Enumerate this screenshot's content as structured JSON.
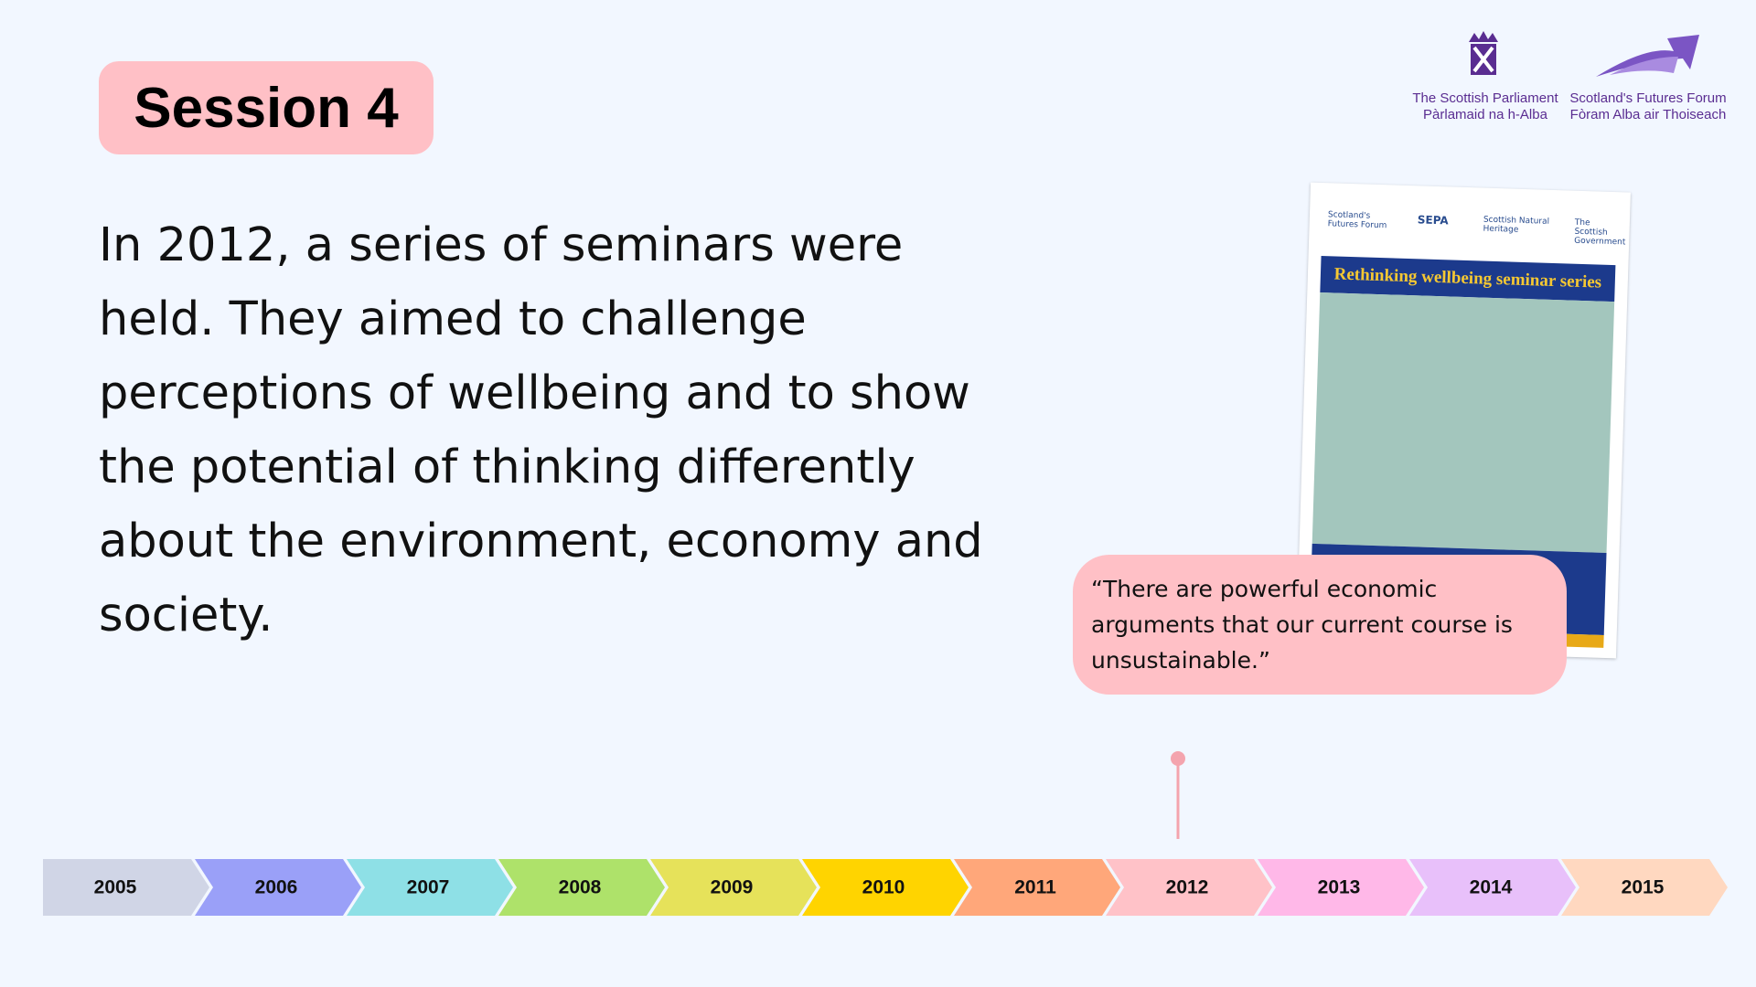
{
  "session": "Session 4",
  "body": "In 2012, a series of seminars were held. They aimed to challenge perceptions of wellbeing and to show the potential of thinking differently about the environment, economy and society.",
  "quote": "“There are powerful economic arguments that our current course is unsustainable.”",
  "logos": {
    "parliament": [
      "The Scottish Parliament",
      "Pàrlamaid na h-Alba"
    ],
    "forum": [
      "Scotland's Futures Forum",
      "Fòram Alba air Thoiseach"
    ]
  },
  "report": {
    "title": "Rethinking wellbeing seminar series",
    "partners": [
      "Scotland's Futures Forum",
      "SEPA",
      "Scottish Natural Heritage",
      "The Scottish Government"
    ]
  },
  "timeline": {
    "years": [
      "2005",
      "2006",
      "2007",
      "2008",
      "2009",
      "2010",
      "2011",
      "2012",
      "2013",
      "2014",
      "2015"
    ],
    "current": 7
  }
}
